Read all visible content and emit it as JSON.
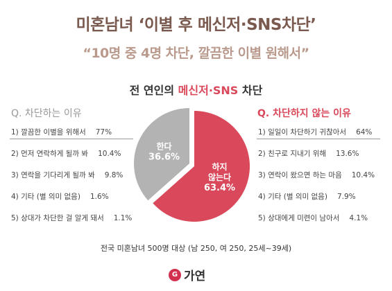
{
  "title": "미혼남녀 ‘이별 후 메신저·SNS차단’",
  "subtitle": "“10명 중 4명 차단, 깔끔한 이별 원해서”",
  "heading": {
    "prefix": "전 연인의 ",
    "highlight": "메신저·SNS",
    "suffix": " 차단"
  },
  "left_question": "Q. 차단하는 이유",
  "right_question": "Q. 차단하지 않는 이유",
  "left_reasons": [
    {
      "label": "1) 깔끔한 이별을 위해서",
      "value": "77%"
    },
    {
      "label": "2) 먼저 연락하게 될까 봐",
      "value": "10.4%"
    },
    {
      "label": "3) 연락을 기다리게 될까 봐",
      "value": "9.8%"
    },
    {
      "label": "4) 기타 (별 의미 없음)",
      "value": "1.6%"
    },
    {
      "label": "5) 상대가 차단한 걸 알게 돼서",
      "value": "1.1%"
    }
  ],
  "right_reasons": [
    {
      "label": "1) 일일이 차단하기 귀찮아서",
      "value": "64%"
    },
    {
      "label": "2) 친구로 지내기 위해",
      "value": "13.6%"
    },
    {
      "label": "3) 연락이 왔으면 하는 마음",
      "value": "10.4%"
    },
    {
      "label": "4) 기타 (별 의미 없음)",
      "value": "7.9%"
    },
    {
      "label": "5) 상대에게 미련이 남아서",
      "value": "4.1%"
    }
  ],
  "footnote": "전국 미혼남녀 500명 대상 (남 250, 여 250, 25세~39세)",
  "logo": {
    "mark": "G",
    "text": "가연"
  },
  "chart_data": {
    "type": "pie",
    "slices": [
      {
        "label": "한다",
        "value": 36.6,
        "value_label": "36.6%",
        "color": "#b3b3b3"
      },
      {
        "label": "하지 않는다",
        "value": 63.4,
        "value_label": "63.4%",
        "color": "#d9485b"
      }
    ]
  }
}
